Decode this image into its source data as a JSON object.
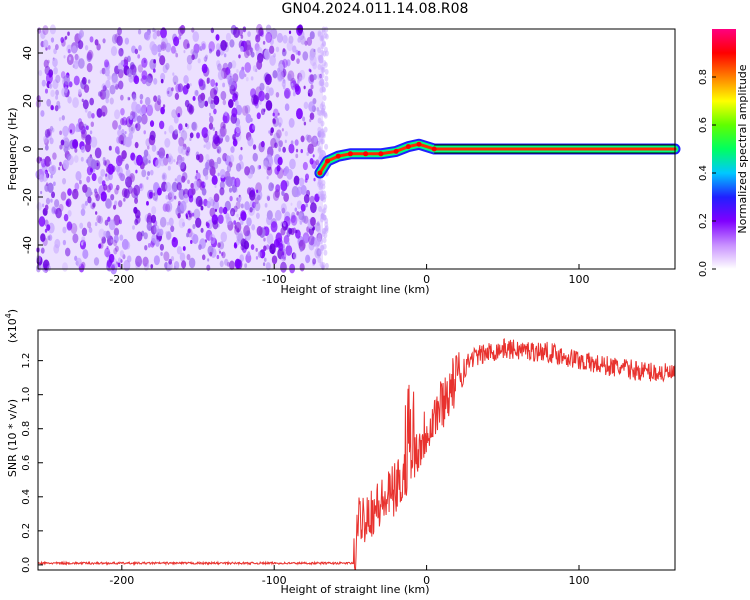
{
  "title": "GN04.2024.011.14.08.R08",
  "chart_data": [
    {
      "type": "heatmap",
      "xlabel": "Height of straight line (km)",
      "ylabel": "Frequency (Hz)",
      "xlim": [
        -255,
        163
      ],
      "ylim": [
        -50,
        50
      ],
      "xticks": [
        -200,
        -100,
        0,
        100
      ],
      "yticks": [
        -40,
        -20,
        0,
        20,
        40
      ],
      "noise_region_x": [
        -255,
        -68
      ],
      "signal_track": [
        {
          "x": -70,
          "y": -10
        },
        {
          "x": -65,
          "y": -5
        },
        {
          "x": -58,
          "y": -3
        },
        {
          "x": -50,
          "y": -2
        },
        {
          "x": -40,
          "y": -2
        },
        {
          "x": -30,
          "y": -2
        },
        {
          "x": -20,
          "y": -1
        },
        {
          "x": -12,
          "y": 1
        },
        {
          "x": -5,
          "y": 2
        },
        {
          "x": 5,
          "y": 0
        },
        {
          "x": 163,
          "y": 0
        }
      ],
      "colorbar": {
        "label": "Normalized spectral amplitude",
        "range": [
          0.0,
          1.0
        ],
        "ticks": [
          "0.0",
          "0.2",
          "0.4",
          "0.6",
          "0.8"
        ],
        "colors": [
          "#ffffff",
          "#c890ff",
          "#8000ff",
          "#2020ff",
          "#00c8ff",
          "#00ff60",
          "#60ff00",
          "#ffff00",
          "#ff8000",
          "#ff0000",
          "#ff0080"
        ]
      }
    },
    {
      "type": "line",
      "xlabel": "Height of straight line (km)",
      "ylabel": "SNR (10 * v/v)",
      "y_multiplier": "(x10",
      "y_multiplier_exp": "4",
      "y_multiplier_close": ")",
      "xlim": [
        -255,
        163
      ],
      "ylim": [
        -0.03,
        1.38
      ],
      "xticks": [
        -200,
        -100,
        0,
        100
      ],
      "yticks": [
        "0.0",
        "0.2",
        "0.4",
        "0.6",
        "0.8",
        "1.0",
        "1.2"
      ],
      "color": "#e8322e",
      "series_profile": [
        [
          -255,
          0.01
        ],
        [
          -48,
          0.01
        ],
        [
          -46,
          0.08
        ],
        [
          -45,
          0.25
        ],
        [
          -40,
          0.3
        ],
        [
          -30,
          0.35
        ],
        [
          -20,
          0.45
        ],
        [
          -10,
          0.6
        ],
        [
          0,
          0.8
        ],
        [
          10,
          0.95
        ],
        [
          20,
          1.1
        ],
        [
          30,
          1.22
        ],
        [
          50,
          1.27
        ],
        [
          80,
          1.25
        ],
        [
          110,
          1.18
        ],
        [
          140,
          1.14
        ],
        [
          163,
          1.12
        ]
      ]
    }
  ]
}
